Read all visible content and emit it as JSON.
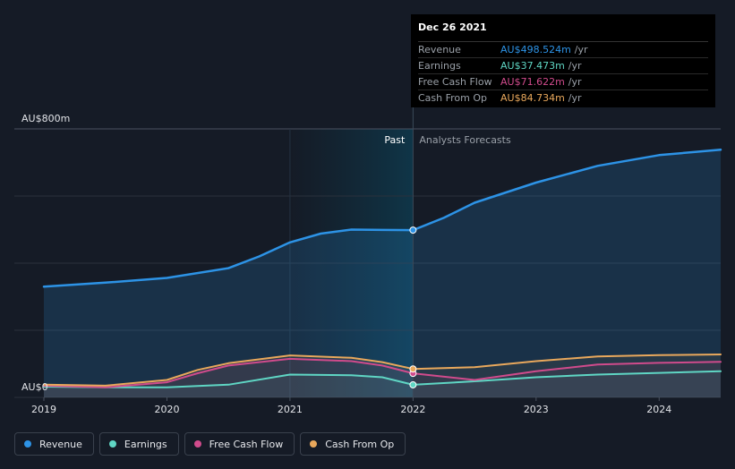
{
  "chart_data": {
    "type": "area",
    "ylabel_top": "AU$800m",
    "ylabel_bottom": "AU$0",
    "ylim": [
      0,
      800
    ],
    "xlim": [
      2019.0,
      2024.5
    ],
    "x_ticks": [
      {
        "value": 2019,
        "label": "2019"
      },
      {
        "value": 2020,
        "label": "2020"
      },
      {
        "value": 2021,
        "label": "2021"
      },
      {
        "value": 2022,
        "label": "2022"
      },
      {
        "value": 2023,
        "label": "2023"
      },
      {
        "value": 2024,
        "label": "2024"
      }
    ],
    "divider_x": 2022.0,
    "past_label": "Past",
    "forecast_label": "Analysts Forecasts",
    "series": [
      {
        "name": "Revenue",
        "color": "#2d93e6",
        "fill": true,
        "points": [
          [
            2019.0,
            330
          ],
          [
            2019.5,
            342
          ],
          [
            2020.0,
            356
          ],
          [
            2020.5,
            385
          ],
          [
            2020.75,
            420
          ],
          [
            2021.0,
            462
          ],
          [
            2021.25,
            488
          ],
          [
            2021.5,
            500
          ],
          [
            2021.75,
            499
          ],
          [
            2022.0,
            498.5
          ],
          [
            2022.25,
            535
          ],
          [
            2022.5,
            580
          ],
          [
            2023.0,
            640
          ],
          [
            2023.5,
            690
          ],
          [
            2024.0,
            722
          ],
          [
            2024.5,
            738
          ]
        ]
      },
      {
        "name": "Earnings",
        "color": "#5fd6c4",
        "fill": false,
        "points": [
          [
            2019.0,
            32
          ],
          [
            2019.5,
            30
          ],
          [
            2020.0,
            30
          ],
          [
            2020.5,
            38
          ],
          [
            2021.0,
            68
          ],
          [
            2021.5,
            66
          ],
          [
            2021.75,
            60
          ],
          [
            2022.0,
            37.5
          ],
          [
            2022.5,
            48
          ],
          [
            2023.0,
            60
          ],
          [
            2023.5,
            68
          ],
          [
            2024.0,
            73
          ],
          [
            2024.5,
            78
          ]
        ]
      },
      {
        "name": "Free Cash Flow",
        "color": "#d04b8c",
        "fill": false,
        "points": [
          [
            2019.0,
            35
          ],
          [
            2019.5,
            30
          ],
          [
            2020.0,
            45
          ],
          [
            2020.25,
            72
          ],
          [
            2020.5,
            95
          ],
          [
            2021.0,
            115
          ],
          [
            2021.5,
            108
          ],
          [
            2021.75,
            95
          ],
          [
            2022.0,
            71.6
          ],
          [
            2022.5,
            52
          ],
          [
            2023.0,
            78
          ],
          [
            2023.5,
            98
          ],
          [
            2024.0,
            103
          ],
          [
            2024.5,
            106
          ]
        ]
      },
      {
        "name": "Cash From Op",
        "color": "#e9a85c",
        "fill": false,
        "points": [
          [
            2019.0,
            38
          ],
          [
            2019.5,
            35
          ],
          [
            2020.0,
            52
          ],
          [
            2020.25,
            82
          ],
          [
            2020.5,
            102
          ],
          [
            2021.0,
            125
          ],
          [
            2021.5,
            118
          ],
          [
            2021.75,
            105
          ],
          [
            2022.0,
            84.7
          ],
          [
            2022.5,
            90
          ],
          [
            2023.0,
            108
          ],
          [
            2023.5,
            122
          ],
          [
            2024.0,
            126
          ],
          [
            2024.5,
            128
          ]
        ]
      }
    ],
    "tooltip": {
      "date": "Dec 26 2021",
      "unit": "/yr",
      "rows": [
        {
          "name": "Revenue",
          "value": "AU$498.524m",
          "color": "#2d93e6"
        },
        {
          "name": "Earnings",
          "value": "AU$37.473m",
          "color": "#5fd6c4"
        },
        {
          "name": "Free Cash Flow",
          "value": "AU$71.622m",
          "color": "#d04b8c"
        },
        {
          "name": "Cash From Op",
          "value": "AU$84.734m",
          "color": "#e9a85c"
        }
      ]
    }
  },
  "legend": [
    {
      "label": "Revenue",
      "color": "#2d93e6"
    },
    {
      "label": "Earnings",
      "color": "#5fd6c4"
    },
    {
      "label": "Free Cash Flow",
      "color": "#d04b8c"
    },
    {
      "label": "Cash From Op",
      "color": "#e9a85c"
    }
  ]
}
